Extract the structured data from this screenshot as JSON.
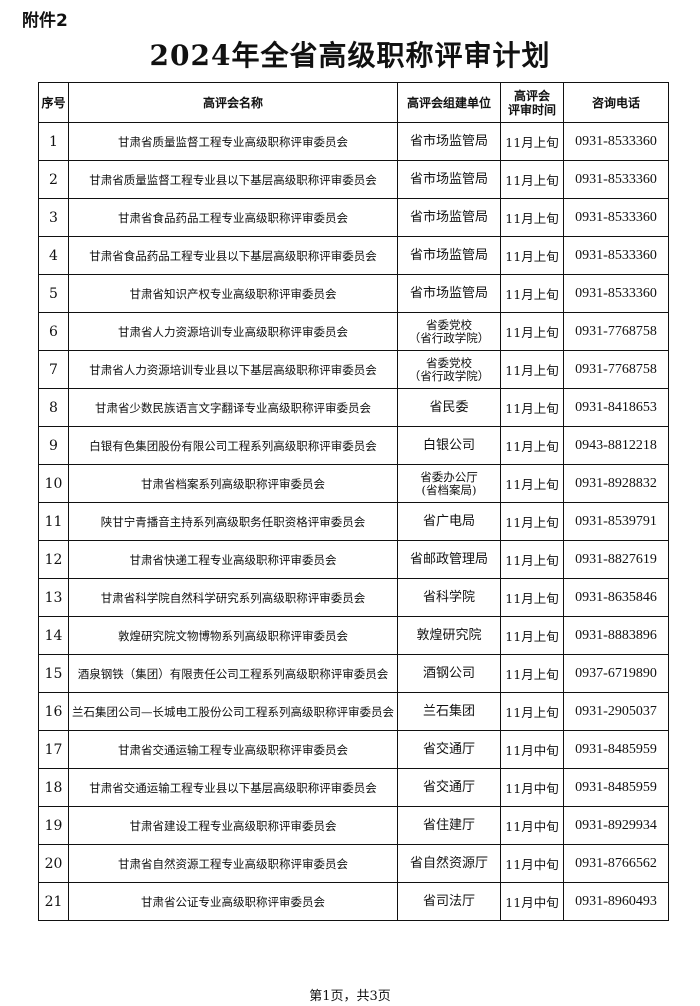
{
  "attachment_label": "附件2",
  "title": "2024年全省高级职称评审计划",
  "table": {
    "headers": [
      "序号",
      "高评会名称",
      "高评会组建单位",
      "高评会\n评审时间",
      "咨询电话"
    ],
    "rows": [
      {
        "no": "1",
        "name": "甘肃省质量监督工程专业高级职称评审委员会",
        "unit": "省市场监管局",
        "time": "11月上旬",
        "phone": "0931-8533360"
      },
      {
        "no": "2",
        "name": "甘肃省质量监督工程专业县以下基层高级职称评审委员会",
        "unit": "省市场监管局",
        "time": "11月上旬",
        "phone": "0931-8533360"
      },
      {
        "no": "3",
        "name": "甘肃省食品药品工程专业高级职称评审委员会",
        "unit": "省市场监管局",
        "time": "11月上旬",
        "phone": "0931-8533360"
      },
      {
        "no": "4",
        "name": "甘肃省食品药品工程专业县以下基层高级职称评审委员会",
        "unit": "省市场监管局",
        "time": "11月上旬",
        "phone": "0931-8533360"
      },
      {
        "no": "5",
        "name": "甘肃省知识产权专业高级职称评审委员会",
        "unit": "省市场监管局",
        "time": "11月上旬",
        "phone": "0931-8533360"
      },
      {
        "no": "6",
        "name": "甘肃省人力资源培训专业高级职称评审委员会",
        "unit": "省委党校\n（省行政学院）",
        "time": "11月上旬",
        "phone": "0931-7768758"
      },
      {
        "no": "7",
        "name": "甘肃省人力资源培训专业县以下基层高级职称评审委员会",
        "unit": "省委党校\n（省行政学院）",
        "time": "11月上旬",
        "phone": "0931-7768758"
      },
      {
        "no": "8",
        "name": "甘肃省少数民族语言文字翻译专业高级职称评审委员会",
        "unit": "省民委",
        "time": "11月上旬",
        "phone": "0931-8418653"
      },
      {
        "no": "9",
        "name": "白银有色集团股份有限公司工程系列高级职称评审委员会",
        "unit": "白银公司",
        "time": "11月上旬",
        "phone": "0943-8812218"
      },
      {
        "no": "10",
        "name": "甘肃省档案系列高级职称评审委员会",
        "unit": "省委办公厅\n(省档案局)",
        "time": "11月上旬",
        "phone": "0931-8928832"
      },
      {
        "no": "11",
        "name": "陕甘宁青播音主持系列高级职务任职资格评审委员会",
        "unit": "省广电局",
        "time": "11月上旬",
        "phone": "0931-8539791"
      },
      {
        "no": "12",
        "name": "甘肃省快递工程专业高级职称评审委员会",
        "unit": "省邮政管理局",
        "time": "11月上旬",
        "phone": "0931-8827619"
      },
      {
        "no": "13",
        "name": "甘肃省科学院自然科学研究系列高级职称评审委员会",
        "unit": "省科学院",
        "time": "11月上旬",
        "phone": "0931-8635846"
      },
      {
        "no": "14",
        "name": "敦煌研究院文物博物系列高级职称评审委员会",
        "unit": "敦煌研究院",
        "time": "11月上旬",
        "phone": "0931-8883896"
      },
      {
        "no": "15",
        "name": "酒泉钢铁（集团）有限责任公司工程系列高级职称评审委员会",
        "unit": "酒钢公司",
        "time": "11月上旬",
        "phone": "0937-6719890"
      },
      {
        "no": "16",
        "name": "兰石集团公司—长城电工股份公司工程系列高级职称评审委员会",
        "unit": "兰石集团",
        "time": "11月上旬",
        "phone": "0931-2905037"
      },
      {
        "no": "17",
        "name": "甘肃省交通运输工程专业高级职称评审委员会",
        "unit": "省交通厅",
        "time": "11月中旬",
        "phone": "0931-8485959"
      },
      {
        "no": "18",
        "name": "甘肃省交通运输工程专业县以下基层高级职称评审委员会",
        "unit": "省交通厅",
        "time": "11月中旬",
        "phone": "0931-8485959"
      },
      {
        "no": "19",
        "name": "甘肃省建设工程专业高级职称评审委员会",
        "unit": "省住建厅",
        "time": "11月中旬",
        "phone": "0931-8929934"
      },
      {
        "no": "20",
        "name": "甘肃省自然资源工程专业高级职称评审委员会",
        "unit": "省自然资源厅",
        "time": "11月中旬",
        "phone": "0931-8766562"
      },
      {
        "no": "21",
        "name": "甘肃省公证专业高级职称评审委员会",
        "unit": "省司法厅",
        "time": "11月中旬",
        "phone": "0931-8960493"
      }
    ]
  },
  "footer": "第1页，共3页"
}
